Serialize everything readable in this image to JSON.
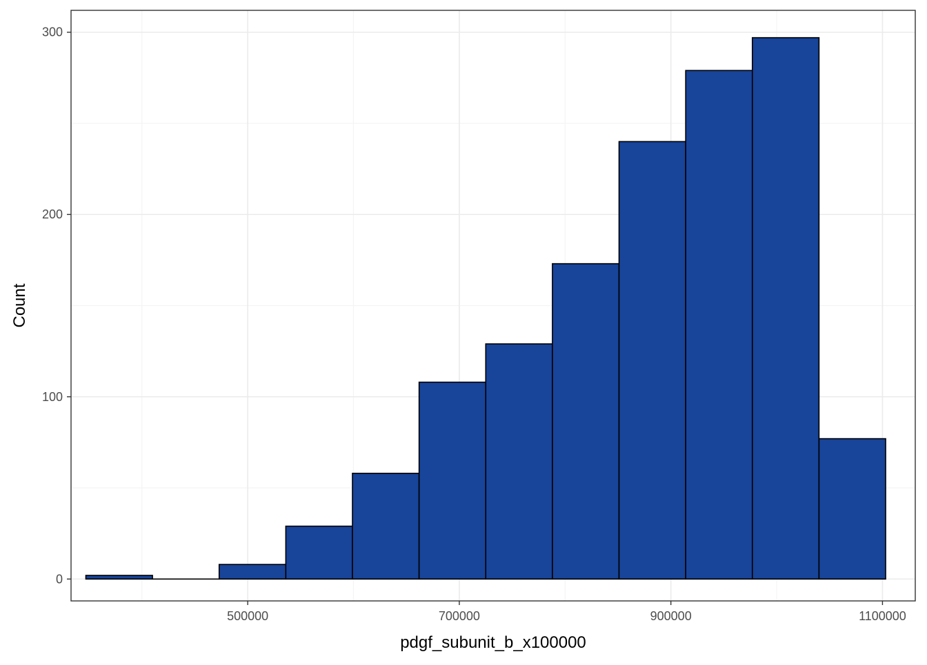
{
  "chart_data": {
    "type": "bar",
    "subtype": "histogram",
    "title": "",
    "xlabel": "pdgf_subunit_b_x100000",
    "ylabel": "Count",
    "x_ticks": [
      500000,
      700000,
      900000,
      1100000
    ],
    "y_ticks": [
      0,
      100,
      200,
      300
    ],
    "xlim": [
      333000,
      1131000
    ],
    "ylim": [
      -12,
      312
    ],
    "bins": [
      {
        "x0": 347000,
        "x1": 410000,
        "count": 2
      },
      {
        "x0": 410000,
        "x1": 473000,
        "count": 0
      },
      {
        "x0": 473000,
        "x1": 536000,
        "count": 8
      },
      {
        "x0": 536000,
        "x1": 599000,
        "count": 29
      },
      {
        "x0": 599000,
        "x1": 662000,
        "count": 58
      },
      {
        "x0": 662000,
        "x1": 725000,
        "count": 108
      },
      {
        "x0": 725000,
        "x1": 788000,
        "count": 129
      },
      {
        "x0": 788000,
        "x1": 851000,
        "count": 173
      },
      {
        "x0": 851000,
        "x1": 914000,
        "count": 240
      },
      {
        "x0": 914000,
        "x1": 977000,
        "count": 279
      },
      {
        "x0": 977000,
        "x1": 1040000,
        "count": 297
      },
      {
        "x0": 1040000,
        "x1": 1103000,
        "count": 77
      }
    ],
    "grid": true,
    "theme": "bw",
    "colors": {
      "bar_fill": "#18449a",
      "bar_stroke": "#000000",
      "grid_major": "#ebebeb",
      "grid_minor": "#f4f4f4",
      "panel_border": "#333333"
    }
  }
}
